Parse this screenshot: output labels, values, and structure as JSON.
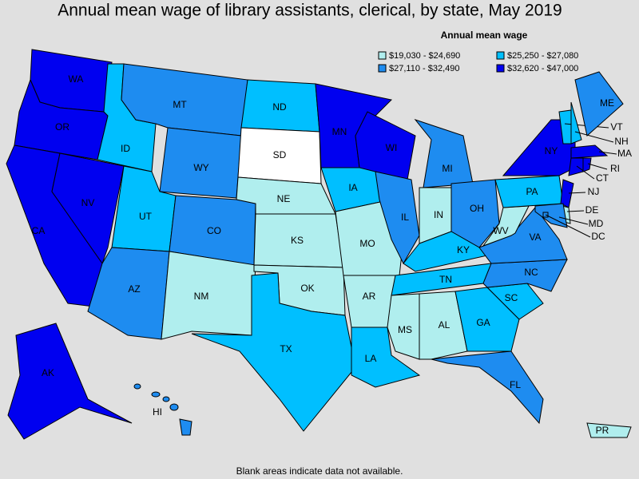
{
  "title": "Annual mean wage of library assistants, clerical, by state, May 2019",
  "legend": {
    "title": "Annual mean wage",
    "items": [
      {
        "label": "$19,030 - $24,690",
        "color": "#b0eeee"
      },
      {
        "label": "$25,250 - $27,080",
        "color": "#00bfff"
      },
      {
        "label": "$27,110 - $32,490",
        "color": "#1e8cf0"
      },
      {
        "label": "$32,620 - $47,000",
        "color": "#0000f0"
      }
    ],
    "no_data_color": "#ffffff"
  },
  "states": [
    {
      "label": "WA",
      "range": 3
    },
    {
      "label": "OR",
      "range": 3
    },
    {
      "label": "CA",
      "range": 3
    },
    {
      "label": "NV",
      "range": 3
    },
    {
      "label": "ID",
      "range": 1
    },
    {
      "label": "MT",
      "range": 2
    },
    {
      "label": "WY",
      "range": 2
    },
    {
      "label": "UT",
      "range": 1
    },
    {
      "label": "CO",
      "range": 2
    },
    {
      "label": "AZ",
      "range": 2
    },
    {
      "label": "NM",
      "range": 0
    },
    {
      "label": "ND",
      "range": 1
    },
    {
      "label": "SD",
      "range": null
    },
    {
      "label": "NE",
      "range": 0
    },
    {
      "label": "KS",
      "range": 0
    },
    {
      "label": "OK",
      "range": 0
    },
    {
      "label": "TX",
      "range": 1
    },
    {
      "label": "MN",
      "range": 3
    },
    {
      "label": "IA",
      "range": 1
    },
    {
      "label": "MO",
      "range": 0
    },
    {
      "label": "AR",
      "range": 0
    },
    {
      "label": "LA",
      "range": 1
    },
    {
      "label": "WI",
      "range": 3
    },
    {
      "label": "IL",
      "range": 2
    },
    {
      "label": "MI",
      "range": 2
    },
    {
      "label": "IN",
      "range": 0
    },
    {
      "label": "OH",
      "range": 2
    },
    {
      "label": "KY",
      "range": 1
    },
    {
      "label": "TN",
      "range": 1
    },
    {
      "label": "MS",
      "range": 0
    },
    {
      "label": "AL",
      "range": 0
    },
    {
      "label": "GA",
      "range": 1
    },
    {
      "label": "FL",
      "range": 2
    },
    {
      "label": "SC",
      "range": 1
    },
    {
      "label": "NC",
      "range": 2
    },
    {
      "label": "VA",
      "range": 2
    },
    {
      "label": "WV",
      "range": 0
    },
    {
      "label": "PA",
      "range": 1
    },
    {
      "label": "NY",
      "range": 3
    },
    {
      "label": "VT",
      "range": 1
    },
    {
      "label": "NH",
      "range": 1
    },
    {
      "label": "ME",
      "range": 2
    },
    {
      "label": "MA",
      "range": 3
    },
    {
      "label": "CT",
      "range": 3
    },
    {
      "label": "RI",
      "range": 3
    },
    {
      "label": "NJ",
      "range": 3
    },
    {
      "label": "DE",
      "range": 0
    },
    {
      "label": "MD",
      "range": 2
    },
    {
      "label": "DC",
      "range": 2
    },
    {
      "label": "AK",
      "range": 3
    },
    {
      "label": "HI",
      "range": 2
    },
    {
      "label": "PR",
      "range": 0
    }
  ],
  "note": "Blank areas indicate data not available."
}
